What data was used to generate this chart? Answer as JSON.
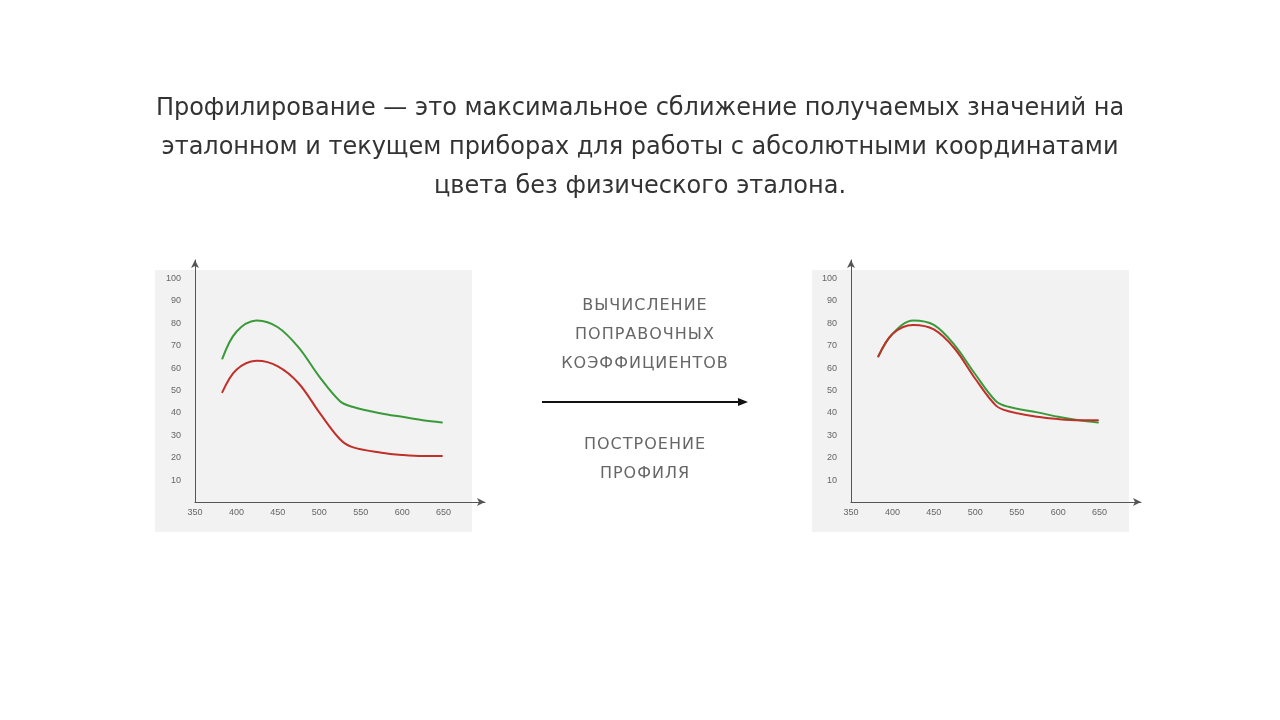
{
  "chart_data": [
    {
      "type": "line",
      "title": "Профилирование — это максимальное сближение получаемых значений на эталонном и текущем приборах для работы с абсолютными координатами цвета без физического эталона.",
      "x": [
        383,
        400,
        425,
        450,
        475,
        500,
        525,
        540,
        575,
        600,
        625,
        648
      ],
      "series": [
        {
          "color": "#3a9a3a",
          "values": [
            64,
            76,
            81,
            78,
            69,
            56,
            45,
            42.5,
            39.5,
            38,
            36.5,
            35.5
          ]
        },
        {
          "color": "#c0302a",
          "values": [
            49,
            59,
            63,
            60.5,
            53,
            40,
            28,
            24.5,
            22,
            21,
            20.5,
            20.5
          ]
        }
      ],
      "xlim": [
        350,
        700
      ],
      "xticks": [
        350,
        400,
        450,
        500,
        550,
        600,
        650
      ],
      "ylim": [
        0,
        108
      ],
      "yticks": [
        10,
        20,
        30,
        40,
        50,
        60,
        70,
        80,
        90,
        100
      ],
      "marker": "none",
      "line_style": "solid"
    },
    {
      "type": "other",
      "annotations": [
        "ВЫЧИСЛЕНИЕ ПОПРАВОЧНЫХ КОЭФФИЦИЕНТОВ",
        "ПОСТРОЕНИЕ ПРОФИЛЯ"
      ]
    },
    {
      "type": "line",
      "x": [
        383,
        400,
        425,
        450,
        475,
        500,
        525,
        540,
        575,
        600,
        625,
        648
      ],
      "series": [
        {
          "color": "#3a9a3a",
          "values": [
            65,
            75,
            81,
            79,
            70,
            57,
            45,
            42.5,
            40,
            38,
            36.5,
            35.5
          ]
        },
        {
          "color": "#c0302a",
          "values": [
            65,
            75,
            79,
            77,
            68.5,
            55,
            43,
            40.5,
            38,
            37,
            36.5,
            36.5
          ]
        }
      ],
      "xlim": [
        350,
        700
      ],
      "xticks": [
        350,
        400,
        450,
        500,
        550,
        600,
        650
      ],
      "ylim": [
        0,
        108
      ],
      "yticks": [
        10,
        20,
        30,
        40,
        50,
        60,
        70,
        80,
        90,
        100
      ],
      "marker": "none",
      "line_style": "solid"
    }
  ]
}
